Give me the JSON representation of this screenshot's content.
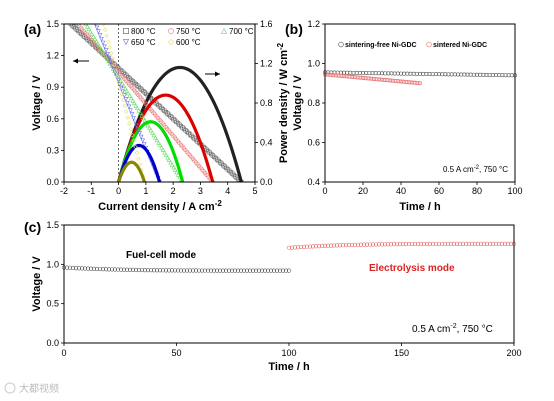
{
  "watermark": "大都视频",
  "chart_data": [
    {
      "panel_label": "(a)",
      "type": "line",
      "xlabel": "Current density / A cm",
      "xlabel_sup": "-2",
      "ylabel_left": "Voltage / V",
      "ylabel_right": "Power density / W cm",
      "ylabel_right_sup": "-2",
      "xlim": [
        -2,
        5
      ],
      "ylim_left": [
        0,
        1.5
      ],
      "ylim_right": [
        0,
        1.6
      ],
      "xticks": [
        -2,
        -1,
        0,
        1,
        2,
        3,
        4,
        5
      ],
      "yticks_left": [
        "0.0",
        "0.3",
        "0.6",
        "0.9",
        "1.2",
        "1.5"
      ],
      "yticks_right": [
        "0.0",
        "0.4",
        "0.8",
        "1.2",
        "1.6"
      ],
      "yticks_left_values": [
        0,
        0.3,
        0.6,
        0.9,
        1.2,
        1.5
      ],
      "yticks_right_values": [
        0,
        0.4,
        0.8,
        1.2,
        1.6
      ],
      "legend": [
        {
          "label": "800 °C",
          "color": "#555555",
          "marker": "square"
        },
        {
          "label": "750 °C",
          "color": "#e87878",
          "marker": "circle"
        },
        {
          "label": "700 °C",
          "color": "#66dd66",
          "marker": "triangle-up"
        },
        {
          "label": "650 °C",
          "color": "#6a6aee",
          "marker": "triangle-down"
        },
        {
          "label": "600 °C",
          "color": "#e6e06a",
          "marker": "diamond"
        }
      ],
      "series": [
        {
          "name": "800 °C",
          "color": "#222222",
          "marker_color": "#666666",
          "voltage": {
            "x_start": -1.75,
            "y_start": 1.5,
            "x_end": 4.5,
            "y_end": 0.0
          },
          "power_peak": {
            "x": 2.25,
            "y": 1.16
          },
          "power_range": [
            0,
            4.5
          ]
        },
        {
          "name": "750 °C",
          "color": "#dd0000",
          "marker_color": "#e87878",
          "voltage": {
            "x_start": -1.5,
            "y_start": 1.5,
            "x_end": 3.45,
            "y_end": 0.0
          },
          "power_peak": {
            "x": 1.75,
            "y": 0.88
          },
          "power_range": [
            0,
            3.45
          ]
        },
        {
          "name": "700 °C",
          "color": "#00dd00",
          "marker_color": "#66dd66",
          "voltage": {
            "x_start": -1.2,
            "y_start": 1.5,
            "x_end": 2.35,
            "y_end": 0.0
          },
          "power_peak": {
            "x": 1.15,
            "y": 0.61
          },
          "power_range": [
            0,
            2.35
          ]
        },
        {
          "name": "650 °C",
          "color": "#0000cc",
          "marker_color": "#6a6aee",
          "voltage": {
            "x_start": -0.85,
            "y_start": 1.5,
            "x_end": 1.5,
            "y_end": 0.0
          },
          "power_peak": {
            "x": 0.75,
            "y": 0.37
          },
          "power_range": [
            0,
            1.5
          ]
        },
        {
          "name": "600 °C",
          "color": "#888800",
          "marker_color": "#e6e06a",
          "voltage": {
            "x_start": -0.55,
            "y_start": 1.5,
            "x_end": 0.95,
            "y_end": 0.0
          },
          "power_peak": {
            "x": 0.45,
            "y": 0.2
          },
          "power_range": [
            0,
            0.95
          ]
        }
      ],
      "annotation_arrows": [
        {
          "direction": "left",
          "target_axis": "voltage"
        },
        {
          "direction": "right",
          "target_axis": "power density"
        }
      ]
    },
    {
      "panel_label": "(b)",
      "type": "scatter",
      "xlabel": "Time / h",
      "ylabel": "Voltage / V",
      "xlim": [
        0,
        100
      ],
      "ylim": [
        0.4,
        1.2
      ],
      "xticks": [
        0,
        20,
        40,
        60,
        80,
        100
      ],
      "yticks": [
        "0.4",
        "0.6",
        "0.8",
        "1.0",
        "1.2"
      ],
      "yticks_values": [
        0.4,
        0.6,
        0.8,
        1.0,
        1.2
      ],
      "annotation": "0.5 A cm",
      "annotation_sup": "-2",
      "annotation_tail": ", 750 °C",
      "series": [
        {
          "name": "sintering-free Ni-GDC",
          "color": "#555555",
          "marker": "circle",
          "x_range": [
            0,
            100
          ],
          "y_start": 0.955,
          "y_end": 0.94
        },
        {
          "name": "sintered Ni-GDC",
          "color": "#e87878",
          "marker": "circle",
          "x_range": [
            0,
            50
          ],
          "y_start": 0.945,
          "y_end": 0.9
        }
      ]
    },
    {
      "panel_label": "(c)",
      "type": "scatter",
      "xlabel": "Time / h",
      "ylabel": "Voltage / V",
      "xlim": [
        0,
        200
      ],
      "ylim": [
        0,
        1.5
      ],
      "xticks": [
        0,
        50,
        100,
        150,
        200
      ],
      "yticks": [
        "0.0",
        "0.5",
        "1.0",
        "1.5"
      ],
      "yticks_values": [
        0,
        0.5,
        1.0,
        1.5
      ],
      "annotation": "0.5 A cm",
      "annotation_sup": "-2",
      "annotation_tail": ", 750 °C",
      "modes": [
        {
          "label": "Fuel-cell mode",
          "color": "#000000"
        },
        {
          "label": "Electrolysis mode",
          "color": "#dd2222"
        }
      ],
      "series": [
        {
          "name": "Fuel-cell mode",
          "color": "#666666",
          "marker": "circle",
          "x_range": [
            0,
            100
          ],
          "y_start": 0.96,
          "y_end": 0.92
        },
        {
          "name": "Electrolysis mode",
          "color": "#e87878",
          "marker": "circle",
          "x_range": [
            100,
            200
          ],
          "y_start": 1.21,
          "y_end": 1.26
        }
      ]
    }
  ]
}
